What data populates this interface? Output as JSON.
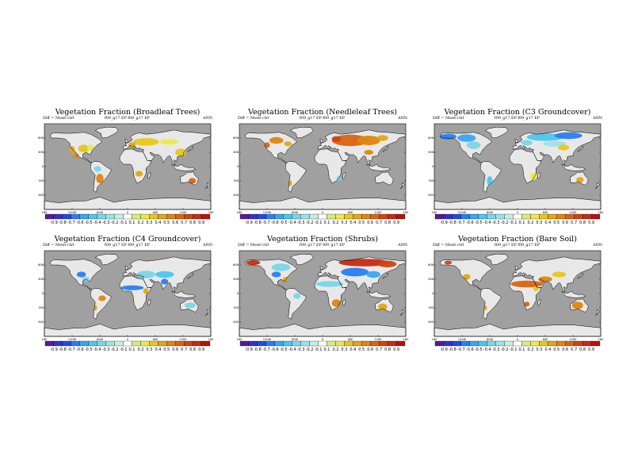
{
  "colorbar": {
    "ticks": [
      "-0.9",
      "-0.8",
      "-0.7",
      "-0.6",
      "-0.5",
      "-0.4",
      "-0.3",
      "-0.2",
      "-0.1",
      "0.1",
      "0.2",
      "0.3",
      "0.4",
      "0.5",
      "0.6",
      "0.7",
      "0.8",
      "0.9"
    ],
    "colors": [
      "#5a1a96",
      "#3432c8",
      "#1e4ce8",
      "#2a7ef0",
      "#3aa6f2",
      "#4cc6ee",
      "#7ad6e8",
      "#9ce2e6",
      "#c4eee4",
      "#ffffff",
      "#d8ec7a",
      "#f0e84a",
      "#e6c818",
      "#e2a612",
      "#de8610",
      "#d86410",
      "#d04410",
      "#c82a10",
      "#b81208"
    ]
  },
  "style": {
    "ocean": "#a0a0a0",
    "land": "#e8e8e8",
    "coast": "#000000"
  },
  "axes": {
    "y_ticks": [
      "60N",
      "30N",
      "0",
      "30S",
      "60S"
    ],
    "x_ticks": [
      "180",
      "120W",
      "60W",
      "0",
      "60E",
      "120E",
      "180"
    ]
  },
  "panels": [
    {
      "title": "Vegetation Fraction (Broadleaf Trees)",
      "sub_left": "Diff = Ntest-ctrl",
      "sub_center": "f09_g17 EP   f09_g17 EP",
      "sub_right": "ANN",
      "blobs": [
        {
          "c": 12,
          "lon": -95,
          "lat": 38,
          "rx": 12,
          "ry": 8
        },
        {
          "c": 11,
          "lon": -80,
          "lat": 40,
          "rx": 8,
          "ry": 6
        },
        {
          "c": 13,
          "lon": -120,
          "lat": 35,
          "rx": 6,
          "ry": 8
        },
        {
          "c": 12,
          "lon": 40,
          "lat": 52,
          "rx": 28,
          "ry": 8
        },
        {
          "c": 11,
          "lon": 90,
          "lat": 52,
          "rx": 20,
          "ry": 6
        },
        {
          "c": 12,
          "lon": 115,
          "lat": 30,
          "rx": 12,
          "ry": 8
        },
        {
          "c": 13,
          "lon": 10,
          "lat": 46,
          "rx": 8,
          "ry": 5
        },
        {
          "c": 14,
          "lon": -60,
          "lat": -25,
          "rx": 8,
          "ry": 10
        },
        {
          "c": 6,
          "lon": -65,
          "lat": -5,
          "rx": 8,
          "ry": 6
        },
        {
          "c": 15,
          "lon": 140,
          "lat": -30,
          "rx": 8,
          "ry": 6
        },
        {
          "c": 13,
          "lon": 25,
          "lat": -15,
          "rx": 8,
          "ry": 6
        },
        {
          "c": 14,
          "lon": -110,
          "lat": 22,
          "rx": 5,
          "ry": 5
        }
      ]
    },
    {
      "title": "Vegetation Fraction (Needleleaf Trees)",
      "sub_left": "Diff = Ntest-ctrl",
      "sub_center": "f09_g17 EP   f09_g17 EP",
      "sub_right": "ANN",
      "blobs": [
        {
          "c": 15,
          "lon": 60,
          "lat": 55,
          "rx": 40,
          "ry": 12
        },
        {
          "c": 14,
          "lon": 100,
          "lat": 55,
          "rx": 25,
          "ry": 10
        },
        {
          "c": 16,
          "lon": 30,
          "lat": 58,
          "rx": 10,
          "ry": 6
        },
        {
          "c": 13,
          "lon": 130,
          "lat": 60,
          "rx": 12,
          "ry": 6
        },
        {
          "c": 14,
          "lon": -100,
          "lat": 55,
          "rx": 15,
          "ry": 7
        },
        {
          "c": 13,
          "lon": -75,
          "lat": 48,
          "rx": 8,
          "ry": 5
        },
        {
          "c": 15,
          "lon": -120,
          "lat": 45,
          "rx": 6,
          "ry": 6
        },
        {
          "c": 14,
          "lon": 100,
          "lat": 30,
          "rx": 10,
          "ry": 5
        },
        {
          "c": 6,
          "lon": 35,
          "lat": -25,
          "rx": 5,
          "ry": 5
        },
        {
          "c": 13,
          "lon": -70,
          "lat": -35,
          "rx": 4,
          "ry": 6
        }
      ]
    },
    {
      "title": "Vegetation Fraction (C3 Groundcover)",
      "sub_left": "Diff = Ntest-ctrl",
      "sub_center": "f09_g17 EP   f09_g17 EP",
      "sub_right": "ANN",
      "blobs": [
        {
          "c": 3,
          "lon": -150,
          "lat": 63,
          "rx": 18,
          "ry": 6
        },
        {
          "c": 4,
          "lon": -110,
          "lat": 60,
          "rx": 20,
          "ry": 8
        },
        {
          "c": 6,
          "lon": -95,
          "lat": 45,
          "rx": 15,
          "ry": 8
        },
        {
          "c": 5,
          "lon": 60,
          "lat": 62,
          "rx": 40,
          "ry": 8
        },
        {
          "c": 3,
          "lon": 110,
          "lat": 65,
          "rx": 30,
          "ry": 7
        },
        {
          "c": 7,
          "lon": 80,
          "lat": 48,
          "rx": 25,
          "ry": 6
        },
        {
          "c": 12,
          "lon": 100,
          "lat": 40,
          "rx": 12,
          "ry": 6
        },
        {
          "c": 6,
          "lon": 20,
          "lat": 50,
          "rx": 12,
          "ry": 6
        },
        {
          "c": 11,
          "lon": 35,
          "lat": -20,
          "rx": 8,
          "ry": 8
        },
        {
          "c": 5,
          "lon": -60,
          "lat": -30,
          "rx": 6,
          "ry": 10
        },
        {
          "c": 13,
          "lon": 135,
          "lat": -28,
          "rx": 8,
          "ry": 6
        }
      ]
    },
    {
      "title": "Vegetation Fraction (C4 Groundcover)",
      "sub_left": "Diff = Ntest-ctrl",
      "sub_center": "f09_g17 EP   f09_g17 EP",
      "sub_right": "ANN",
      "blobs": [
        {
          "c": 3,
          "lon": -100,
          "lat": 40,
          "rx": 10,
          "ry": 6
        },
        {
          "c": 6,
          "lon": -90,
          "lat": 30,
          "rx": 8,
          "ry": 5
        },
        {
          "c": 6,
          "lon": 40,
          "lat": 40,
          "rx": 20,
          "ry": 8
        },
        {
          "c": 5,
          "lon": 80,
          "lat": 40,
          "rx": 20,
          "ry": 7
        },
        {
          "c": 3,
          "lon": 80,
          "lat": 25,
          "rx": 8,
          "ry": 6
        },
        {
          "c": 3,
          "lon": 10,
          "lat": 12,
          "rx": 25,
          "ry": 5
        },
        {
          "c": 13,
          "lon": 40,
          "lat": 5,
          "rx": 6,
          "ry": 6
        },
        {
          "c": 14,
          "lon": -55,
          "lat": -10,
          "rx": 8,
          "ry": 6
        },
        {
          "c": 6,
          "lon": 135,
          "lat": -25,
          "rx": 12,
          "ry": 6
        },
        {
          "c": 13,
          "lon": -70,
          "lat": -30,
          "rx": 4,
          "ry": 6
        }
      ]
    },
    {
      "title": "Vegetation Fraction (Shrubs)",
      "sub_left": "Diff = Ntest-ctrl",
      "sub_center": "f09_g17 EP   f09_g17 EP",
      "sub_right": "ANN",
      "blobs": [
        {
          "c": 17,
          "lon": 90,
          "lat": 65,
          "rx": 55,
          "ry": 8
        },
        {
          "c": 16,
          "lon": 140,
          "lat": 62,
          "rx": 20,
          "ry": 7
        },
        {
          "c": 3,
          "lon": 70,
          "lat": 45,
          "rx": 30,
          "ry": 9
        },
        {
          "c": 4,
          "lon": 110,
          "lat": 40,
          "rx": 15,
          "ry": 7
        },
        {
          "c": 6,
          "lon": -90,
          "lat": 55,
          "rx": 20,
          "ry": 8
        },
        {
          "c": 17,
          "lon": -150,
          "lat": 65,
          "rx": 15,
          "ry": 5
        },
        {
          "c": 3,
          "lon": -100,
          "lat": 40,
          "rx": 10,
          "ry": 6
        },
        {
          "c": 13,
          "lon": -80,
          "lat": 30,
          "rx": 6,
          "ry": 5
        },
        {
          "c": 6,
          "lon": 15,
          "lat": 20,
          "rx": 30,
          "ry": 6
        },
        {
          "c": 14,
          "lon": 30,
          "lat": -20,
          "rx": 10,
          "ry": 8
        },
        {
          "c": 6,
          "lon": -55,
          "lat": -5,
          "rx": 8,
          "ry": 6
        },
        {
          "c": 13,
          "lon": 130,
          "lat": -28,
          "rx": 10,
          "ry": 7
        }
      ]
    },
    {
      "title": "Vegetation Fraction (Bare Soil)",
      "sub_left": "Diff = Ntest-ctrl",
      "sub_center": "f09_g17 EP   f09_g17 EP",
      "sub_right": "ANN",
      "blobs": [
        {
          "c": 15,
          "lon": 20,
          "lat": 20,
          "rx": 35,
          "ry": 7
        },
        {
          "c": 14,
          "lon": 60,
          "lat": 30,
          "rx": 15,
          "ry": 6
        },
        {
          "c": 12,
          "lon": 90,
          "lat": 40,
          "rx": 15,
          "ry": 6
        },
        {
          "c": 13,
          "lon": -110,
          "lat": 35,
          "rx": 8,
          "ry": 6
        },
        {
          "c": 16,
          "lon": -150,
          "lat": 65,
          "rx": 8,
          "ry": 4
        },
        {
          "c": 14,
          "lon": 130,
          "lat": -25,
          "rx": 12,
          "ry": 8
        },
        {
          "c": 15,
          "lon": 20,
          "lat": -22,
          "rx": 6,
          "ry": 5
        },
        {
          "c": 13,
          "lon": -70,
          "lat": -30,
          "rx": 4,
          "ry": 5
        },
        {
          "c": 12,
          "lon": 40,
          "lat": 10,
          "rx": 6,
          "ry": 5
        }
      ]
    }
  ]
}
